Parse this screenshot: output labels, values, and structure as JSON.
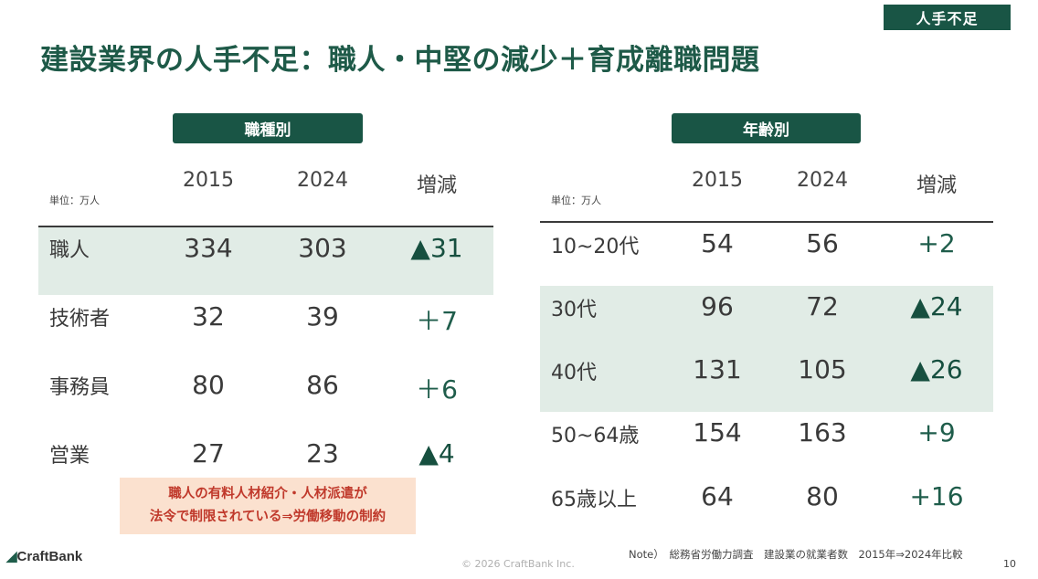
{
  "tag": "人手不足",
  "title": "建設業界の人手不足：職人・中堅の減少＋育成離職問題",
  "left": {
    "heading": "職種別",
    "unit": "単位：万人",
    "columns": [
      "2015",
      "2024",
      "増減"
    ],
    "rows": [
      {
        "label": "職人",
        "v2015": "334",
        "v2024": "303",
        "change": "▲31",
        "highlight": true
      },
      {
        "label": "技術者",
        "v2015": "32",
        "v2024": "39",
        "change": "＋7",
        "highlight": false
      },
      {
        "label": "事務員",
        "v2015": "80",
        "v2024": "86",
        "change": "＋6",
        "highlight": false
      },
      {
        "label": "営業",
        "v2015": "27",
        "v2024": "23",
        "change": "▲4",
        "highlight": false
      }
    ]
  },
  "right": {
    "heading": "年齢別",
    "unit": "単位：万人",
    "columns": [
      "2015",
      "2024",
      "増減"
    ],
    "rows": [
      {
        "label": "10~20代",
        "v2015": "54",
        "v2024": "56",
        "change": "+2",
        "highlight": false
      },
      {
        "label": "30代",
        "v2015": "96",
        "v2024": "72",
        "change": "▲24",
        "highlight": true
      },
      {
        "label": "40代",
        "v2015": "131",
        "v2024": "105",
        "change": "▲26",
        "highlight": true
      },
      {
        "label": "50~64歳",
        "v2015": "154",
        "v2024": "163",
        "change": "+9",
        "highlight": false
      },
      {
        "label": "65歳以上",
        "v2015": "64",
        "v2024": "80",
        "change": "+16",
        "highlight": false
      }
    ]
  },
  "callout": {
    "line1": "職人の有料人材紹介・人材派遣が",
    "line2": "法令で制限されている⇒労働移動の制約"
  },
  "footer": {
    "logo": "CraftBank",
    "copyright": "© 2026 CraftBank Inc.",
    "source": "Note）　総務省労働力調査　建設業の就業者数　2015年⇒2024年比較",
    "page": "10"
  },
  "colors": {
    "primary": "#195545",
    "highlight_band": "#e1ece6",
    "callout_bg": "#fbe1cf",
    "callout_text": "#c0392b"
  }
}
